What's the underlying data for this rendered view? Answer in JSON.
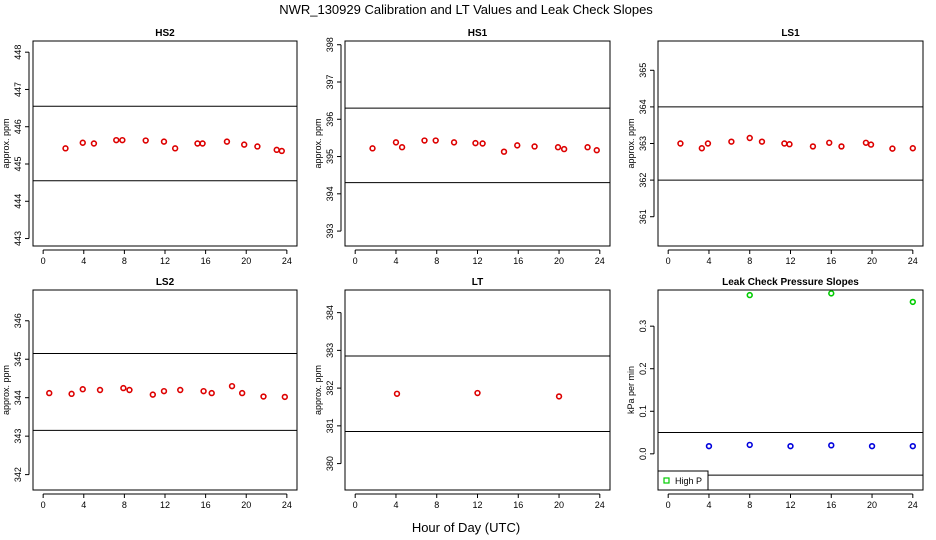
{
  "figure": {
    "title": "NWR_130929  Calibration and LT Values and Leak Check Slopes",
    "xlabel": "Hour of Day (UTC)"
  },
  "chart_data": [
    {
      "type": "scatter",
      "title": "HS2",
      "ylabel": "approx. ppm",
      "xlim": [
        -1,
        25
      ],
      "ylim": [
        442.8,
        448.3
      ],
      "xticks": [
        0,
        4,
        8,
        12,
        16,
        20,
        24
      ],
      "yticks": [
        443,
        444,
        445,
        446,
        447,
        448
      ],
      "hlines": [
        444.55,
        446.55
      ],
      "marker_color": "#dd0000",
      "series": [
        {
          "x": [
            2.2,
            3.9,
            5.0,
            7.2,
            7.8,
            10.1,
            11.9,
            13.0,
            15.2,
            15.7,
            18.1,
            19.8,
            21.1,
            23.0,
            23.5
          ],
          "y": [
            445.42,
            445.57,
            445.55,
            445.64,
            445.64,
            445.63,
            445.6,
            445.42,
            445.55,
            445.55,
            445.6,
            445.52,
            445.47,
            445.38,
            445.35
          ]
        }
      ]
    },
    {
      "type": "scatter",
      "title": "HS1",
      "ylabel": "approx. ppm",
      "xlim": [
        -1,
        25
      ],
      "ylim": [
        392.6,
        398.1
      ],
      "xticks": [
        0,
        4,
        8,
        12,
        16,
        20,
        24
      ],
      "yticks": [
        393,
        394,
        395,
        396,
        397,
        398
      ],
      "hlines": [
        394.3,
        396.3
      ],
      "marker_color": "#dd0000",
      "series": [
        {
          "x": [
            1.7,
            4.0,
            4.6,
            6.8,
            7.9,
            9.7,
            11.8,
            12.5,
            14.6,
            15.9,
            17.6,
            19.9,
            20.5,
            22.8,
            23.7
          ],
          "y": [
            395.22,
            395.38,
            395.25,
            395.43,
            395.43,
            395.38,
            395.36,
            395.35,
            395.13,
            395.3,
            395.27,
            395.25,
            395.2,
            395.25,
            395.17
          ]
        }
      ]
    },
    {
      "type": "scatter",
      "title": "LS1",
      "ylabel": "approx. ppm",
      "xlim": [
        -1,
        25
      ],
      "ylim": [
        360.2,
        365.8
      ],
      "xticks": [
        0,
        4,
        8,
        12,
        16,
        20,
        24
      ],
      "yticks": [
        361,
        362,
        363,
        364,
        365
      ],
      "hlines": [
        362.0,
        364.0
      ],
      "marker_color": "#dd0000",
      "series": [
        {
          "x": [
            1.2,
            3.3,
            3.9,
            6.2,
            8.0,
            9.2,
            11.4,
            11.9,
            14.2,
            15.8,
            17.0,
            19.4,
            19.9,
            22.0,
            24.0
          ],
          "y": [
            363.0,
            362.87,
            363.0,
            363.05,
            363.15,
            363.05,
            363.0,
            362.98,
            362.92,
            363.02,
            362.92,
            363.02,
            362.97,
            362.86,
            362.87
          ]
        }
      ]
    },
    {
      "type": "scatter",
      "title": "LS2",
      "ylabel": "approx. ppm",
      "xlim": [
        -1,
        25
      ],
      "ylim": [
        341.6,
        346.8
      ],
      "xticks": [
        0,
        4,
        8,
        12,
        16,
        20,
        24
      ],
      "yticks": [
        342,
        343,
        344,
        345,
        346
      ],
      "hlines": [
        343.15,
        345.15
      ],
      "marker_color": "#dd0000",
      "series": [
        {
          "x": [
            0.6,
            2.8,
            3.9,
            5.6,
            7.9,
            8.5,
            10.8,
            11.9,
            13.5,
            15.8,
            16.6,
            18.6,
            19.6,
            21.7,
            23.8
          ],
          "y": [
            344.12,
            344.1,
            344.22,
            344.2,
            344.25,
            344.2,
            344.08,
            344.17,
            344.2,
            344.17,
            344.12,
            344.3,
            344.12,
            344.03,
            344.02
          ]
        }
      ]
    },
    {
      "type": "scatter",
      "title": "LT",
      "ylabel": "approx. ppm",
      "xlim": [
        -1,
        25
      ],
      "ylim": [
        379.3,
        384.6
      ],
      "xticks": [
        0,
        4,
        8,
        12,
        16,
        20,
        24
      ],
      "yticks": [
        380,
        381,
        382,
        383,
        384
      ],
      "hlines": [
        380.85,
        382.85
      ],
      "marker_color": "#dd0000",
      "series": [
        {
          "x": [
            4.1,
            12.0,
            20.0
          ],
          "y": [
            381.85,
            381.87,
            381.78
          ]
        }
      ]
    },
    {
      "type": "scatter",
      "title": "Leak Check Pressure Slopes",
      "ylabel": "kPa per min",
      "xlim": [
        -1,
        25
      ],
      "ylim": [
        -0.085,
        0.385
      ],
      "xticks": [
        0,
        4,
        8,
        12,
        16,
        20,
        24
      ],
      "yticks": [
        0.0,
        0.1,
        0.2,
        0.3
      ],
      "hlines": [
        0.05,
        -0.05
      ],
      "legend": {
        "entries": [
          "High P"
        ],
        "placement": "bottom-left",
        "color": "#00cc00"
      },
      "series": [
        {
          "name": "High P",
          "color": "#00cc00",
          "x": [
            8.0,
            16.0,
            24.0
          ],
          "y": [
            0.373,
            0.377,
            0.357
          ]
        },
        {
          "color": "#0000dd",
          "x": [
            4.0,
            8.0,
            12.0,
            16.0,
            20.0,
            24.0
          ],
          "y": [
            0.018,
            0.021,
            0.018,
            0.02,
            0.018,
            0.018
          ]
        }
      ]
    }
  ]
}
